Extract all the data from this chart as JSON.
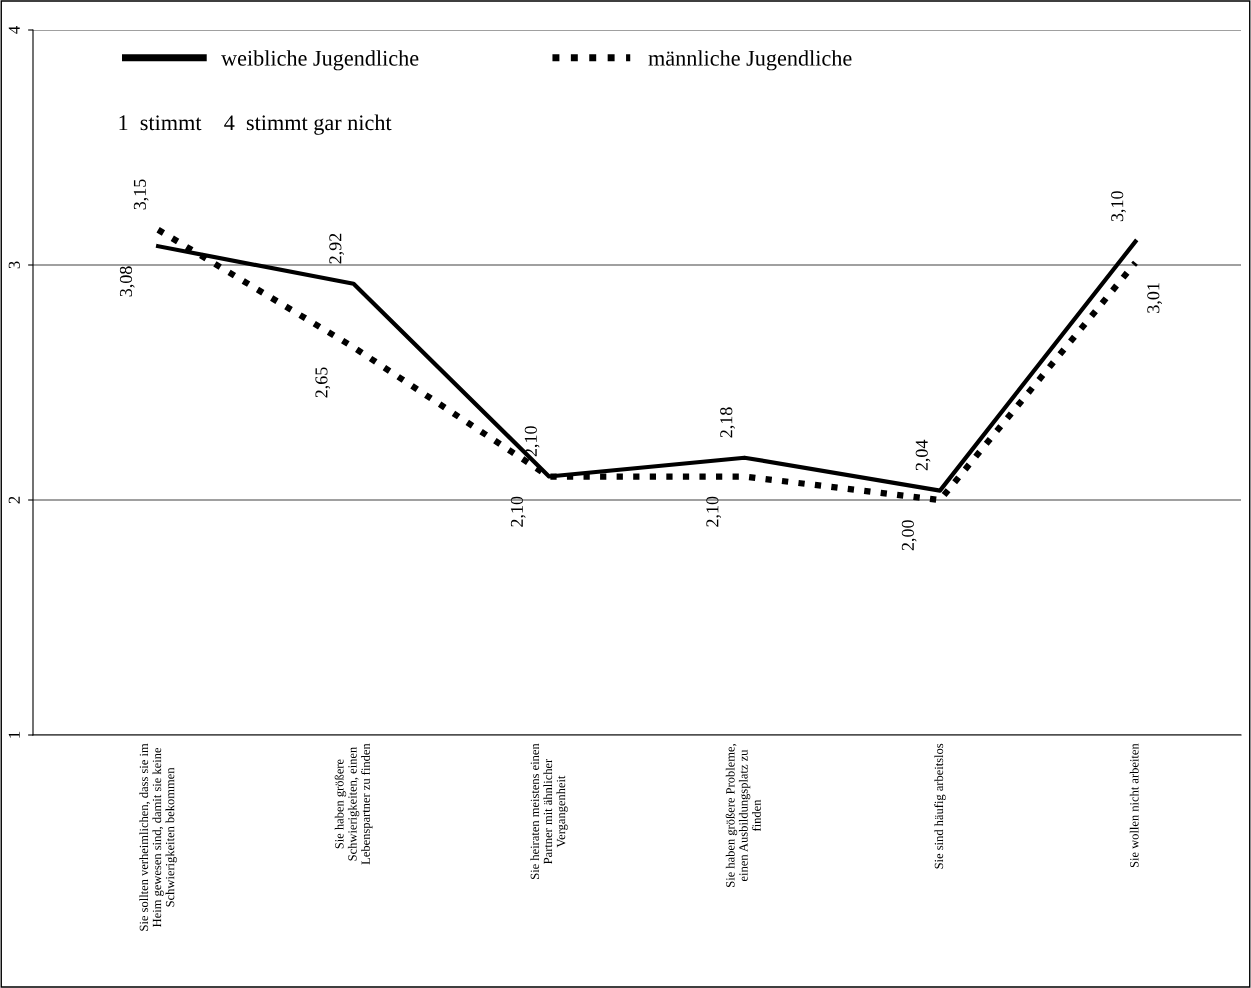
{
  "chart_data": {
    "type": "line",
    "categories": [
      "Sie sollten verheimlichen, dass sie im\nHeim gewesen sind, damit sie keine\nSchwierigkeiten bekommen",
      "Sie haben größere\nSchwierigkeiten, einen\nLebenspartner zu finden",
      "Sie heiraten meistens einen\nPartner mit ähnlicher\nVergangenheit",
      "Sie haben größere Probleme,\neinen Ausbildungsplatz zu\nfinden",
      "Sie sind häufig arbeitslos",
      "Sie wollen nicht arbeiten"
    ],
    "series": [
      {
        "name": "weibliche Jugendliche",
        "color": "#000000",
        "line_style": "solid",
        "values": [
          3.08,
          2.92,
          2.1,
          2.18,
          2.04,
          3.1
        ],
        "value_labels": [
          "3,08",
          "2,92",
          "2,10",
          "2,18",
          "2,04",
          "3,10"
        ]
      },
      {
        "name": "männliche Jugendliche",
        "color": "#000000",
        "line_style": "dotted",
        "values": [
          3.15,
          2.65,
          2.1,
          2.1,
          2.0,
          3.01
        ],
        "value_labels": [
          "3,15",
          "2,65",
          "2,10",
          "2,10",
          "2,00",
          "3,01"
        ]
      }
    ],
    "annotations": [
      "1  stimmt    4  stimmt gar nicht"
    ],
    "ylim": [
      1,
      4
    ],
    "yticks": [
      1,
      2,
      3,
      4
    ],
    "grid": "y",
    "legend": "top left",
    "marker": "none"
  }
}
